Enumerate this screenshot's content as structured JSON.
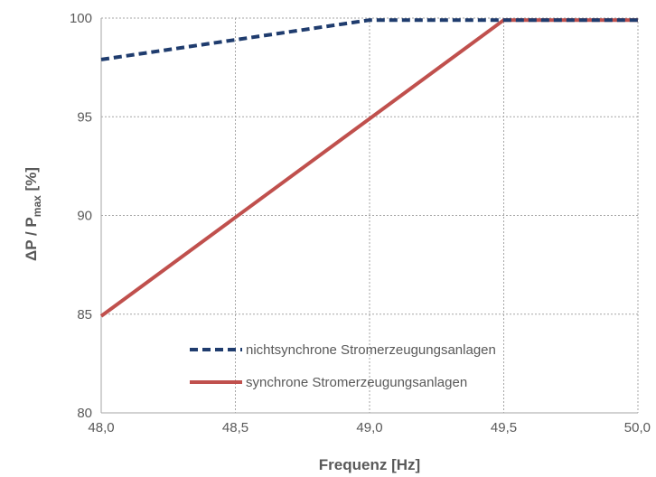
{
  "chart_data": {
    "type": "line",
    "xlabel": "Frequenz [Hz]",
    "ylabel": {
      "main": "ΔP / P",
      "sub": "max",
      "unit": " [%]"
    },
    "xlim": [
      48.0,
      50.0
    ],
    "ylim": [
      80,
      100
    ],
    "x_ticks": [
      48.0,
      48.5,
      49.0,
      49.5,
      50.0
    ],
    "x_tick_labels": [
      "48,0",
      "48,5",
      "49,0",
      "49,5",
      "50,0"
    ],
    "y_ticks": [
      80,
      85,
      90,
      95,
      100
    ],
    "y_tick_labels": [
      "80",
      "85",
      "90",
      "95",
      "100"
    ],
    "grid": true,
    "legend_position": "bottom-center",
    "series": [
      {
        "name": "nichtsynchrone Stromerzeugungsanlagen",
        "style": "dashed",
        "color": "#1f3c6e",
        "x": [
          48.0,
          49.0,
          50.0
        ],
        "y": [
          97.9,
          99.9,
          99.9
        ]
      },
      {
        "name": "synchrone Stromerzeugungsanlagen",
        "style": "solid",
        "color": "#c0504d",
        "x": [
          48.0,
          49.5,
          50.0
        ],
        "y": [
          84.9,
          99.9,
          99.9
        ]
      }
    ]
  }
}
